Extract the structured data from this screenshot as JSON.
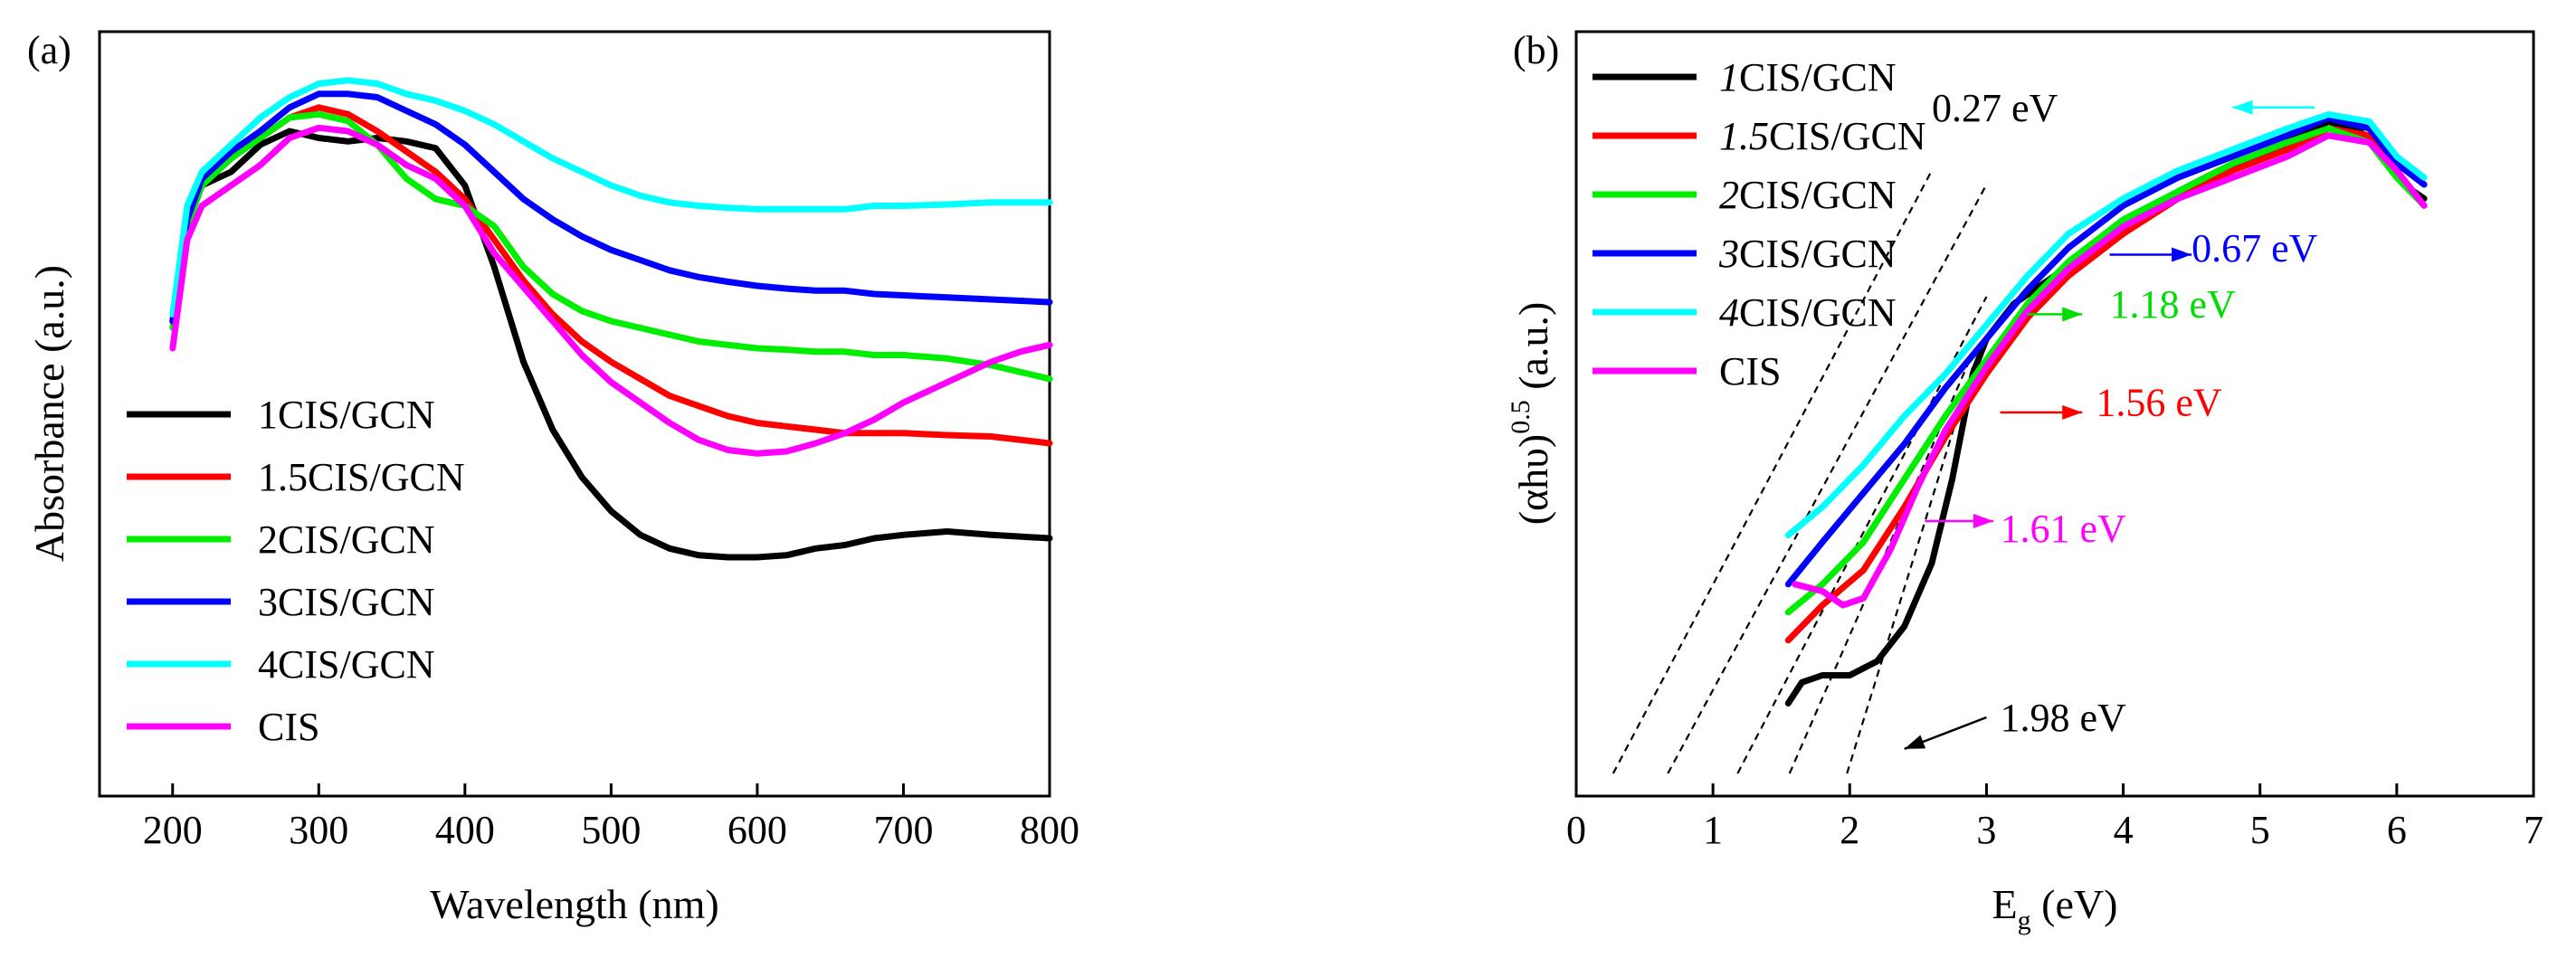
{
  "chart_data": [
    {
      "panel_label": "(a)",
      "type": "line",
      "xlabel": "Wavelength (nm)",
      "ylabel": "Absorbance (a.u.)",
      "xlim": [
        150,
        800
      ],
      "ylim": [
        0,
        1
      ],
      "xticks": [
        "200",
        "300",
        "400",
        "500",
        "600",
        "700",
        "800"
      ],
      "legend_position": "bottom-left",
      "series": [
        {
          "name": "1CIS/GCN",
          "color": "#000000",
          "x": [
            200,
            210,
            220,
            240,
            260,
            280,
            300,
            320,
            340,
            360,
            380,
            400,
            420,
            440,
            460,
            480,
            500,
            520,
            540,
            560,
            580,
            600,
            620,
            640,
            660,
            680,
            700,
            730,
            760,
            800
          ],
          "y": [
            0.62,
            0.76,
            0.82,
            0.84,
            0.88,
            0.9,
            0.89,
            0.885,
            0.89,
            0.885,
            0.875,
            0.82,
            0.7,
            0.56,
            0.46,
            0.39,
            0.34,
            0.305,
            0.285,
            0.275,
            0.272,
            0.272,
            0.275,
            0.285,
            0.29,
            0.3,
            0.305,
            0.31,
            0.305,
            0.3
          ]
        },
        {
          "name": "1.5CIS/GCN",
          "color": "#ff0000",
          "x": [
            200,
            210,
            220,
            240,
            260,
            280,
            300,
            320,
            340,
            360,
            380,
            400,
            420,
            440,
            460,
            480,
            500,
            520,
            540,
            560,
            580,
            600,
            620,
            640,
            660,
            680,
            700,
            730,
            760,
            800
          ],
          "y": [
            0.62,
            0.77,
            0.82,
            0.86,
            0.89,
            0.92,
            0.935,
            0.925,
            0.9,
            0.87,
            0.84,
            0.8,
            0.74,
            0.68,
            0.63,
            0.59,
            0.56,
            0.535,
            0.51,
            0.495,
            0.48,
            0.47,
            0.465,
            0.46,
            0.455,
            0.455,
            0.455,
            0.452,
            0.45,
            0.44
          ]
        },
        {
          "name": "2CIS/GCN",
          "color": "#00ee00",
          "x": [
            200,
            210,
            220,
            240,
            260,
            280,
            300,
            320,
            340,
            360,
            380,
            400,
            420,
            440,
            460,
            480,
            500,
            520,
            540,
            560,
            580,
            600,
            620,
            640,
            660,
            680,
            700,
            730,
            760,
            800
          ],
          "y": [
            0.61,
            0.76,
            0.82,
            0.86,
            0.89,
            0.92,
            0.925,
            0.915,
            0.88,
            0.83,
            0.8,
            0.79,
            0.76,
            0.7,
            0.66,
            0.635,
            0.62,
            0.61,
            0.6,
            0.59,
            0.585,
            0.58,
            0.578,
            0.575,
            0.575,
            0.57,
            0.57,
            0.565,
            0.555,
            0.535
          ]
        },
        {
          "name": "3CIS/GCN",
          "color": "#0000ff",
          "x": [
            200,
            210,
            220,
            240,
            260,
            280,
            300,
            320,
            340,
            360,
            380,
            400,
            420,
            440,
            460,
            480,
            500,
            520,
            540,
            560,
            580,
            600,
            620,
            640,
            660,
            680,
            700,
            730,
            760,
            800
          ],
          "y": [
            0.62,
            0.77,
            0.83,
            0.87,
            0.9,
            0.935,
            0.955,
            0.955,
            0.95,
            0.93,
            0.91,
            0.88,
            0.84,
            0.8,
            0.77,
            0.745,
            0.725,
            0.71,
            0.695,
            0.685,
            0.678,
            0.672,
            0.668,
            0.665,
            0.665,
            0.66,
            0.658,
            0.655,
            0.652,
            0.648
          ]
        },
        {
          "name": "4CIS/GCN",
          "color": "#00ffff",
          "x": [
            200,
            210,
            220,
            240,
            260,
            280,
            300,
            320,
            340,
            360,
            380,
            400,
            420,
            440,
            460,
            480,
            500,
            520,
            540,
            560,
            580,
            600,
            620,
            640,
            660,
            680,
            700,
            730,
            760,
            800
          ],
          "y": [
            0.63,
            0.79,
            0.84,
            0.88,
            0.92,
            0.95,
            0.97,
            0.975,
            0.97,
            0.955,
            0.945,
            0.93,
            0.91,
            0.885,
            0.86,
            0.84,
            0.82,
            0.805,
            0.795,
            0.79,
            0.787,
            0.785,
            0.785,
            0.785,
            0.785,
            0.79,
            0.79,
            0.792,
            0.795,
            0.795
          ]
        },
        {
          "name": "CIS",
          "color": "#ff00ff",
          "x": [
            200,
            210,
            220,
            240,
            260,
            280,
            300,
            320,
            340,
            360,
            380,
            400,
            420,
            440,
            460,
            480,
            500,
            520,
            540,
            560,
            580,
            600,
            620,
            640,
            660,
            680,
            700,
            720,
            740,
            760,
            780,
            800
          ],
          "y": [
            0.58,
            0.74,
            0.79,
            0.82,
            0.85,
            0.89,
            0.905,
            0.9,
            0.88,
            0.85,
            0.83,
            0.79,
            0.72,
            0.67,
            0.62,
            0.57,
            0.53,
            0.5,
            0.47,
            0.445,
            0.43,
            0.425,
            0.428,
            0.44,
            0.455,
            0.475,
            0.5,
            0.52,
            0.54,
            0.56,
            0.575,
            0.585
          ]
        }
      ]
    },
    {
      "panel_label": "(b)",
      "type": "line",
      "xlabel_main": "E",
      "xlabel_sub": "g",
      "xlabel_unit": " (eV)",
      "ylabel_main": "(αhυ)",
      "ylabel_sup": "0.5",
      "ylabel_unit": " (a.u.)",
      "xlim": [
        0,
        7
      ],
      "ylim": [
        0,
        1
      ],
      "xticks": [
        "0",
        "1",
        "2",
        "3",
        "4",
        "5",
        "6",
        "7"
      ],
      "legend_position": "top-left",
      "legend_prefix": [
        "1",
        "1.5",
        "2",
        "3",
        "4",
        ""
      ],
      "legend_suffix": [
        "CIS/GCN",
        "CIS/GCN",
        "CIS/GCN",
        "CIS/GCN",
        "CIS/GCN",
        "CIS"
      ],
      "series": [
        {
          "name": "1CIS/GCN",
          "color": "#000000",
          "x": [
            1.55,
            1.65,
            1.8,
            2.0,
            2.2,
            2.4,
            2.6,
            2.75,
            2.85,
            2.9,
            3.0,
            3.2,
            3.5,
            3.8,
            4.1,
            4.4,
            4.7,
            5.0,
            5.3,
            5.5,
            5.7,
            5.9,
            6.05,
            6.2
          ],
          "y": [
            0.1,
            0.13,
            0.14,
            0.14,
            0.16,
            0.21,
            0.3,
            0.42,
            0.52,
            0.57,
            0.62,
            0.67,
            0.71,
            0.75,
            0.79,
            0.83,
            0.86,
            0.88,
            0.91,
            0.93,
            0.92,
            0.89,
            0.84,
            0.82
          ]
        },
        {
          "name": "1.5CIS/GCN",
          "color": "#ff0000",
          "x": [
            1.55,
            1.8,
            2.1,
            2.4,
            2.7,
            3.0,
            3.3,
            3.6,
            4.0,
            4.4,
            4.8,
            5.2,
            5.5,
            5.8,
            6.0,
            6.2
          ],
          "y": [
            0.19,
            0.24,
            0.29,
            0.38,
            0.48,
            0.57,
            0.65,
            0.71,
            0.77,
            0.82,
            0.86,
            0.89,
            0.92,
            0.91,
            0.86,
            0.81
          ]
        },
        {
          "name": "2CIS/GCN",
          "color": "#00ee00",
          "x": [
            1.55,
            1.8,
            2.1,
            2.4,
            2.7,
            3.0,
            3.3,
            3.6,
            4.0,
            4.4,
            4.8,
            5.2,
            5.5,
            5.8,
            6.0,
            6.2
          ],
          "y": [
            0.23,
            0.27,
            0.33,
            0.42,
            0.51,
            0.59,
            0.67,
            0.73,
            0.79,
            0.83,
            0.87,
            0.9,
            0.92,
            0.9,
            0.85,
            0.81
          ]
        },
        {
          "name": "3CIS/GCN",
          "color": "#0000ff",
          "x": [
            1.55,
            1.8,
            2.1,
            2.4,
            2.7,
            3.0,
            3.3,
            3.6,
            4.0,
            4.4,
            4.8,
            5.2,
            5.5,
            5.8,
            6.0,
            6.2
          ],
          "y": [
            0.27,
            0.33,
            0.4,
            0.47,
            0.55,
            0.62,
            0.69,
            0.75,
            0.81,
            0.85,
            0.88,
            0.91,
            0.935,
            0.92,
            0.87,
            0.84
          ]
        },
        {
          "name": "4CIS/GCN",
          "color": "#00ffff",
          "x": [
            1.55,
            1.8,
            2.1,
            2.4,
            2.7,
            3.0,
            3.3,
            3.6,
            4.0,
            4.4,
            4.8,
            5.2,
            5.5,
            5.8,
            6.0,
            6.2
          ],
          "y": [
            0.34,
            0.38,
            0.44,
            0.51,
            0.57,
            0.64,
            0.71,
            0.77,
            0.82,
            0.86,
            0.89,
            0.92,
            0.94,
            0.93,
            0.88,
            0.85
          ]
        },
        {
          "name": "CIS",
          "color": "#ff00ff",
          "x": [
            1.6,
            1.8,
            1.95,
            2.1,
            2.3,
            2.5,
            2.7,
            3.0,
            3.3,
            3.6,
            4.0,
            4.4,
            4.8,
            5.2,
            5.5,
            5.8,
            6.0,
            6.2
          ],
          "y": [
            0.27,
            0.26,
            0.24,
            0.25,
            0.32,
            0.41,
            0.49,
            0.58,
            0.66,
            0.72,
            0.78,
            0.82,
            0.85,
            0.88,
            0.91,
            0.9,
            0.86,
            0.81
          ]
        }
      ],
      "tangent_lines": [
        {
          "x": [
            0.27,
            2.6
          ],
          "y": [
            0.0,
            0.86
          ]
        },
        {
          "x": [
            0.67,
            3.0
          ],
          "y": [
            0.0,
            0.84
          ]
        },
        {
          "x": [
            1.18,
            3.0
          ],
          "y": [
            0.0,
            0.68
          ]
        },
        {
          "x": [
            1.56,
            2.9
          ],
          "y": [
            0.0,
            0.6
          ]
        },
        {
          "x": [
            1.98,
            2.9
          ],
          "y": [
            0.0,
            0.58
          ]
        }
      ],
      "annotations": [
        {
          "text": "0.27 eV",
          "color": "#000000",
          "text_x": 2.6,
          "text_y": 0.95,
          "arrow_color": "#00ffff",
          "arrow_from": [
            5.4,
            0.95
          ],
          "arrow_to": [
            4.8,
            0.95
          ]
        },
        {
          "text": "0.67 eV",
          "color": "#0000ff",
          "text_x": 4.5,
          "text_y": 0.75,
          "arrow_color": "#0000ff",
          "arrow_from": [
            3.9,
            0.74
          ],
          "arrow_to": [
            4.5,
            0.74
          ]
        },
        {
          "text": "1.18 eV",
          "color": "#00dd00",
          "text_x": 3.9,
          "text_y": 0.67,
          "arrow_color": "#00dd00",
          "arrow_from": [
            3.3,
            0.655
          ],
          "arrow_to": [
            3.7,
            0.655
          ]
        },
        {
          "text": "1.56 eV",
          "color": "#ff0000",
          "text_x": 3.8,
          "text_y": 0.53,
          "arrow_color": "#ff0000",
          "arrow_from": [
            3.1,
            0.515
          ],
          "arrow_to": [
            3.7,
            0.515
          ]
        },
        {
          "text": "1.61 eV",
          "color": "#ff00ff",
          "text_x": 3.1,
          "text_y": 0.35,
          "arrow_color": "#ff00ff",
          "arrow_from": [
            2.55,
            0.36
          ],
          "arrow_to": [
            3.05,
            0.36
          ]
        },
        {
          "text": "1.98 eV",
          "color": "#000000",
          "text_x": 3.1,
          "text_y": 0.08,
          "arrow_color": "#000000",
          "arrow_from": [
            3.0,
            0.08
          ],
          "arrow_to": [
            2.4,
            0.035
          ]
        }
      ]
    }
  ]
}
